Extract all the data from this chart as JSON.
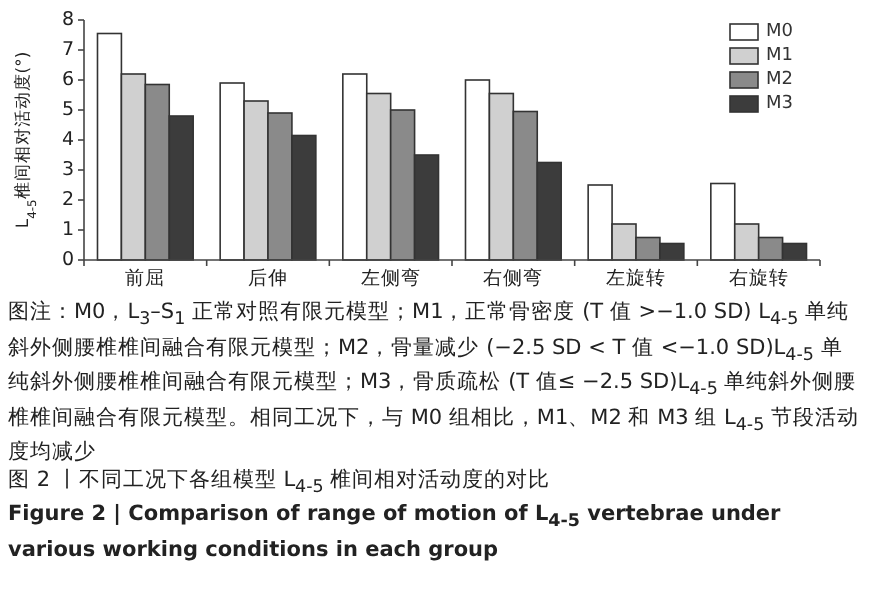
{
  "chart_data": {
    "type": "bar",
    "ylabel": "L$_{4-5}$椎间相对活动度(°)",
    "categories": [
      "前屈",
      "后伸",
      "左侧弯",
      "右侧弯",
      "左旋转",
      "右旋转"
    ],
    "series": [
      {
        "name": "M0",
        "color": "#ffffff",
        "values": [
          7.55,
          5.9,
          6.2,
          6.0,
          2.5,
          2.55
        ]
      },
      {
        "name": "M1",
        "color": "#d0d0d0",
        "values": [
          6.2,
          5.3,
          5.55,
          5.55,
          1.2,
          1.2
        ]
      },
      {
        "name": "M2",
        "color": "#8a8a8a",
        "values": [
          5.85,
          4.9,
          5.0,
          4.95,
          0.75,
          0.75
        ]
      },
      {
        "name": "M3",
        "color": "#3c3c3c",
        "values": [
          4.8,
          4.15,
          3.5,
          3.25,
          0.55,
          0.55
        ]
      }
    ],
    "ylim": [
      0,
      8
    ],
    "yticks": [
      0,
      1,
      2,
      3,
      4,
      5,
      6,
      7,
      8
    ],
    "legend": "top right",
    "grid": false,
    "annotations": [
      "图注：M0，L$_{3}$–S$_{1}$ 正常对照有限元模型；M1，正常骨密度 (T 值 >−1.0 SD) L$_{4-5}$ 单纯斜外侧腰椎椎间融合有限元模型；M2，骨量减少 (−2.5 SD < T 值 <−1.0 SD)L$_{4-5}$ 单纯斜外侧腰椎椎间融合有限元模型；M3，骨质疏松 (T 值≤ −2.5 SD)L$_{4-5}$ 单纯斜外侧腰椎椎间融合有限元模型。相同工况下，与 M0 组相比，M1、M2 和 M3 组 L$_{4-5}$ 节段活动度均减少",
      "图 2 丨不同工况下各组模型 L$_{4-5}$ 椎间相对活动度的对比",
      "Figure 2 | Comparison of range of motion of L$_{4-5}$ vertebrae under various working conditions in each group"
    ]
  }
}
